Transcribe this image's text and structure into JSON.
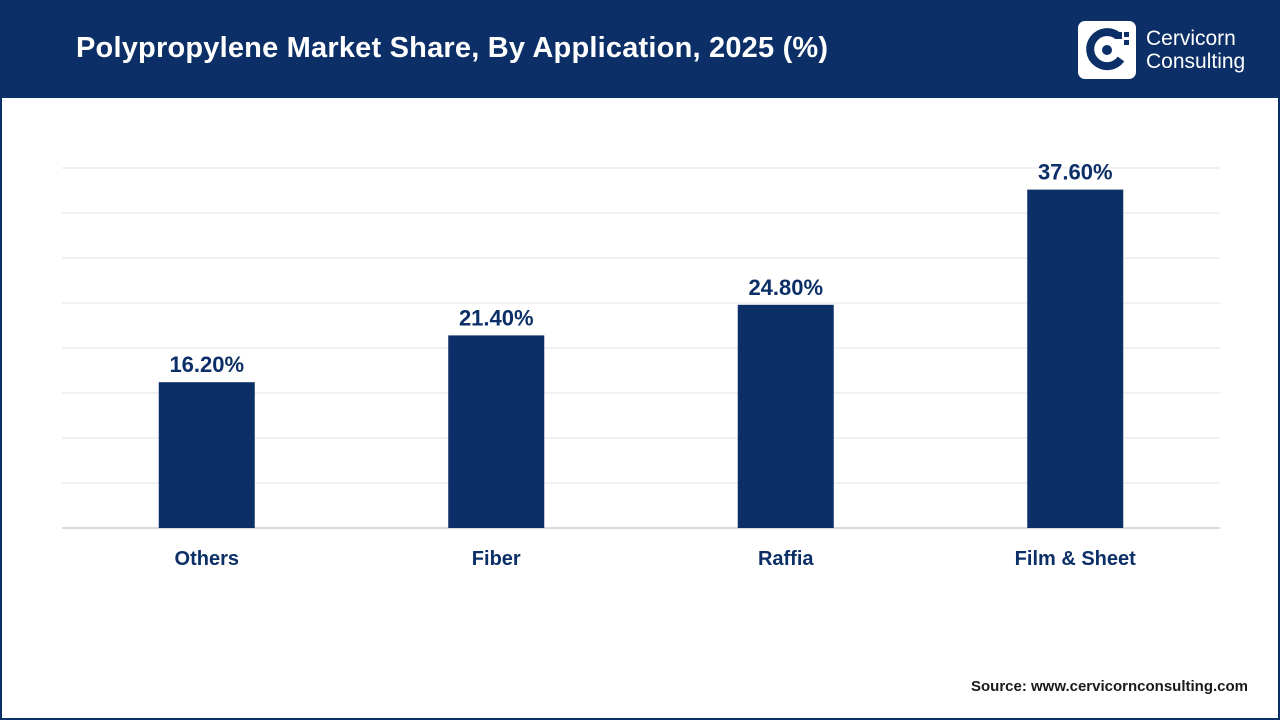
{
  "header": {
    "title": "Polypropylene Market Share, By Application, 2025 (%)",
    "logo_line1": "Cervicorn",
    "logo_line2": "Consulting"
  },
  "source": "Source: www.cervicornconsulting.com",
  "colors": {
    "brand": "#0b2f66",
    "bar": "#0b2f66",
    "grid": "#e3e3e3",
    "text": "#0b2f66"
  },
  "chart_data": {
    "type": "bar",
    "categories": [
      "Others",
      "Fiber",
      "Raffia",
      "Film & Sheet"
    ],
    "values": [
      16.2,
      21.4,
      24.8,
      37.6
    ],
    "data_labels": [
      "16.20%",
      "21.40%",
      "24.80%",
      "37.60%"
    ],
    "title": "Polypropylene Market Share, By Application, 2025 (%)",
    "xlabel": "",
    "ylabel": "",
    "ylim": [
      0,
      40
    ],
    "grid": true,
    "legend": "none"
  }
}
